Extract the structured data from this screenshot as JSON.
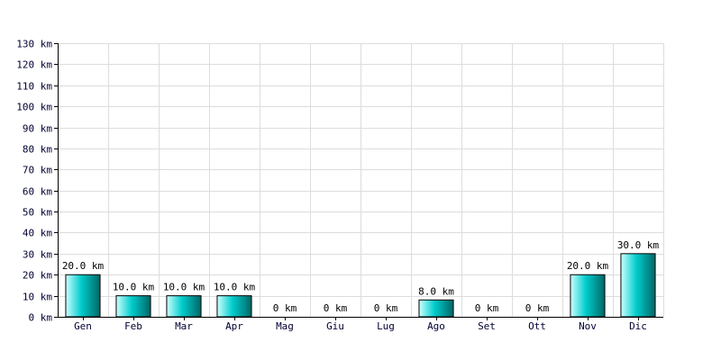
{
  "chart_data": {
    "type": "bar",
    "title": "",
    "xlabel": "",
    "ylabel": "",
    "unit": "km",
    "categories": [
      "Gen",
      "Feb",
      "Mar",
      "Apr",
      "Mag",
      "Giu",
      "Lug",
      "Ago",
      "Set",
      "Ott",
      "Nov",
      "Dic"
    ],
    "values": [
      20,
      10,
      10,
      10,
      0,
      0,
      0,
      8,
      0,
      0,
      20,
      30
    ],
    "data_labels": [
      "20.0 km",
      "10.0 km",
      "10.0 km",
      "10.0 km",
      "0 km",
      "0 km",
      "0 km",
      "8.0 km",
      "0 km",
      "0 km",
      "20.0 km",
      "30.0 km"
    ],
    "ylim": [
      0,
      130
    ],
    "yticks": [
      0,
      10,
      20,
      30,
      40,
      50,
      60,
      70,
      80,
      90,
      100,
      110,
      120,
      130
    ],
    "ytick_labels": [
      "0 km",
      "10 km",
      "20 km",
      "30 km",
      "40 km",
      "50 km",
      "60 km",
      "70 km",
      "80 km",
      "90 km",
      "100 km",
      "110 km",
      "120 km",
      "130 km"
    ],
    "grid": true,
    "colors": {
      "bar_light": "#ccffff",
      "bar_mid": "#00cccc",
      "bar_dark": "#006666",
      "grid": "#dddddd",
      "axis": "#000000",
      "tick_text": "#000033"
    }
  }
}
